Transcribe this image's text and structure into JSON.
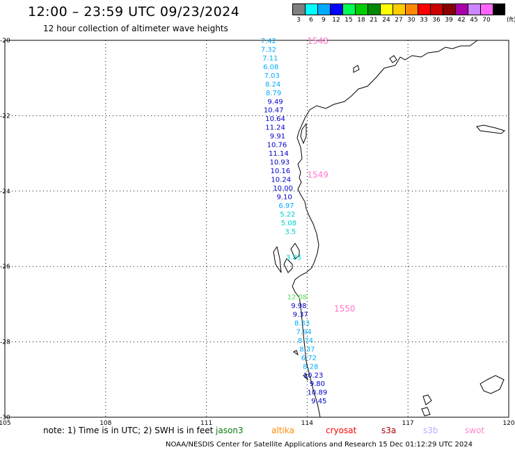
{
  "header": {
    "title": "12:00 – 23:59 UTC 09/23/2024",
    "subtitle": "12 hour collection of altimeter wave heights"
  },
  "color_scale": {
    "unit": "(ft)",
    "bins": [
      {
        "label": "3",
        "color": "#808080"
      },
      {
        "label": "6",
        "color": "#00ffff"
      },
      {
        "label": "9",
        "color": "#00aaff"
      },
      {
        "label": "12",
        "color": "#0000ff"
      },
      {
        "label": "15",
        "color": "#00ff55"
      },
      {
        "label": "18",
        "color": "#00cc00"
      },
      {
        "label": "21",
        "color": "#008800"
      },
      {
        "label": "24",
        "color": "#ffff00"
      },
      {
        "label": "27",
        "color": "#ffcc00"
      },
      {
        "label": "30",
        "color": "#ff8800"
      },
      {
        "label": "33",
        "color": "#ff0000"
      },
      {
        "label": "36",
        "color": "#cc0000"
      },
      {
        "label": "39",
        "color": "#880000"
      },
      {
        "label": "42",
        "color": "#aa00aa"
      },
      {
        "label": "45",
        "color": "#cc88ff"
      },
      {
        "label": "70",
        "color": "#ff66ff"
      },
      {
        "label": "",
        "color": "#000000"
      }
    ]
  },
  "map": {
    "lon_ticks": [
      "105",
      "108",
      "111",
      "114",
      "117",
      "120"
    ],
    "lat_ticks": [
      "-20",
      "-22",
      "-24",
      "-26",
      "-28",
      "-30"
    ],
    "lon_range": [
      105,
      120
    ],
    "lat_range": [
      -20,
      -30
    ],
    "track_labels": [
      {
        "text": "1548",
        "lon": 114.0,
        "lat": -20.0
      },
      {
        "text": "1549",
        "lon": 114.0,
        "lat": -23.55
      },
      {
        "text": "1550",
        "lon": 114.8,
        "lat": -27.1
      }
    ],
    "observations": [
      {
        "value": "7.42",
        "lon": 112.85,
        "lat": -20.0,
        "color": "#00aaff"
      },
      {
        "value": "7.32",
        "lon": 112.85,
        "lat": -20.23,
        "color": "#00aaff"
      },
      {
        "value": "7.11",
        "lon": 112.9,
        "lat": -20.46,
        "color": "#00aaff"
      },
      {
        "value": "6.08",
        "lon": 112.92,
        "lat": -20.69,
        "color": "#00aaff"
      },
      {
        "value": "7.03",
        "lon": 112.95,
        "lat": -20.92,
        "color": "#00aaff"
      },
      {
        "value": "8.24",
        "lon": 112.98,
        "lat": -21.15,
        "color": "#00aaff"
      },
      {
        "value": "8.79",
        "lon": 113.0,
        "lat": -21.38,
        "color": "#00aaff"
      },
      {
        "value": "9.49",
        "lon": 113.05,
        "lat": -21.61,
        "color": "#0000cc"
      },
      {
        "value": "10.47",
        "lon": 113.0,
        "lat": -21.84,
        "color": "#0000cc"
      },
      {
        "value": "10.64",
        "lon": 113.05,
        "lat": -22.07,
        "color": "#0000cc"
      },
      {
        "value": "11.24",
        "lon": 113.05,
        "lat": -22.3,
        "color": "#0000cc"
      },
      {
        "value": "9.91",
        "lon": 113.12,
        "lat": -22.53,
        "color": "#0000cc"
      },
      {
        "value": "10.76",
        "lon": 113.1,
        "lat": -22.76,
        "color": "#0000cc"
      },
      {
        "value": "11.14",
        "lon": 113.15,
        "lat": -22.99,
        "color": "#0000cc"
      },
      {
        "value": "10.93",
        "lon": 113.18,
        "lat": -23.22,
        "color": "#0000cc"
      },
      {
        "value": "10.16",
        "lon": 113.2,
        "lat": -23.45,
        "color": "#0000cc"
      },
      {
        "value": "10.24",
        "lon": 113.22,
        "lat": -23.68,
        "color": "#0000cc"
      },
      {
        "value": "10.00",
        "lon": 113.28,
        "lat": -23.91,
        "color": "#0000cc"
      },
      {
        "value": "9.10",
        "lon": 113.32,
        "lat": -24.14,
        "color": "#0000cc"
      },
      {
        "value": "6.97",
        "lon": 113.38,
        "lat": -24.37,
        "color": "#00aaff"
      },
      {
        "value": "5.22",
        "lon": 113.42,
        "lat": -24.6,
        "color": "#00cccc"
      },
      {
        "value": "5.08",
        "lon": 113.45,
        "lat": -24.83,
        "color": "#00cccc"
      },
      {
        "value": "3.5",
        "lon": 113.5,
        "lat": -25.06,
        "color": "#00cccc"
      },
      {
        "value": "3.85",
        "lon": 113.6,
        "lat": -25.75,
        "color": "#00cccc"
      },
      {
        "value": "12.08",
        "lon": 113.7,
        "lat": -26.8,
        "color": "#55dd55"
      },
      {
        "value": "9.98",
        "lon": 113.75,
        "lat": -27.03,
        "color": "#0000cc"
      },
      {
        "value": "9.37",
        "lon": 113.8,
        "lat": -27.26,
        "color": "#0000cc"
      },
      {
        "value": "8.33",
        "lon": 113.85,
        "lat": -27.49,
        "color": "#00aaff"
      },
      {
        "value": "7.94",
        "lon": 113.9,
        "lat": -27.72,
        "color": "#00aaff"
      },
      {
        "value": "8.74",
        "lon": 113.95,
        "lat": -27.95,
        "color": "#00aaff"
      },
      {
        "value": "8.37",
        "lon": 114.0,
        "lat": -28.18,
        "color": "#00aaff"
      },
      {
        "value": "6.72",
        "lon": 114.05,
        "lat": -28.41,
        "color": "#00aaff"
      },
      {
        "value": "8.28",
        "lon": 114.1,
        "lat": -28.64,
        "color": "#00aaff"
      },
      {
        "value": "10.23",
        "lon": 114.18,
        "lat": -28.87,
        "color": "#0000cc"
      },
      {
        "value": "9.80",
        "lon": 114.3,
        "lat": -29.1,
        "color": "#0000cc"
      },
      {
        "value": "10.89",
        "lon": 114.3,
        "lat": -29.33,
        "color": "#0000cc"
      },
      {
        "value": "9.45",
        "lon": 114.35,
        "lat": -29.56,
        "color": "#0000cc"
      }
    ]
  },
  "footer": {
    "note": "note: 1) Time is in UTC; 2) SWH is in feet",
    "satellites": [
      {
        "name": "jason3",
        "color": "#0a7a0a"
      },
      {
        "name": "altika",
        "color": "#ff8800"
      },
      {
        "name": "cryosat",
        "color": "#ff0000"
      },
      {
        "name": "s3a",
        "color": "#aa0000"
      },
      {
        "name": "s3b",
        "color": "#bbaaff"
      },
      {
        "name": "swot",
        "color": "#ff88cc"
      }
    ],
    "credit": "NOAA/NESDIS Center for Satellite Applications and Research    15 Dec 01:12:29 UTC 2024"
  }
}
